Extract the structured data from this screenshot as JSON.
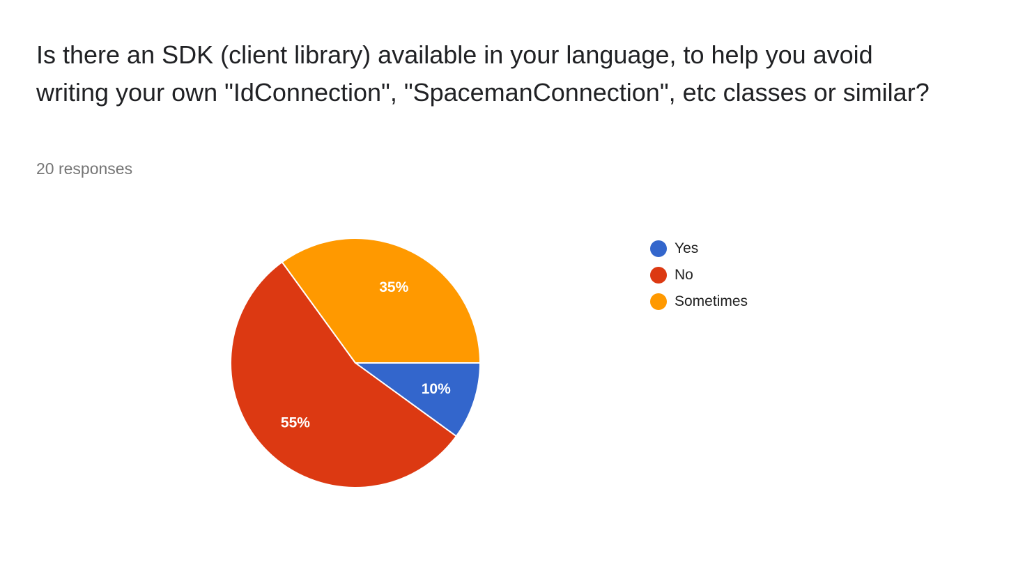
{
  "header": {
    "title": "Is there an SDK (client library) available in your language, to help you avoid writing your own \"IdConnection\", \"SpacemanConnection\", etc classes or similar?",
    "responses": "20 responses"
  },
  "chart_data": {
    "type": "pie",
    "title": "Is there an SDK (client library) available in your language, to help you avoid writing your own \"IdConnection\", \"SpacemanConnection\", etc classes or similar?",
    "subtitle": "20 responses",
    "categories": [
      "Yes",
      "No",
      "Sometimes"
    ],
    "values": [
      10,
      55,
      35
    ],
    "labels": [
      "10%",
      "55%",
      "35%"
    ],
    "colors": [
      "#3366cc",
      "#dc3912",
      "#ff9900"
    ],
    "legend": "right",
    "start_angle": "3 o'clock",
    "direction": "clockwise"
  }
}
